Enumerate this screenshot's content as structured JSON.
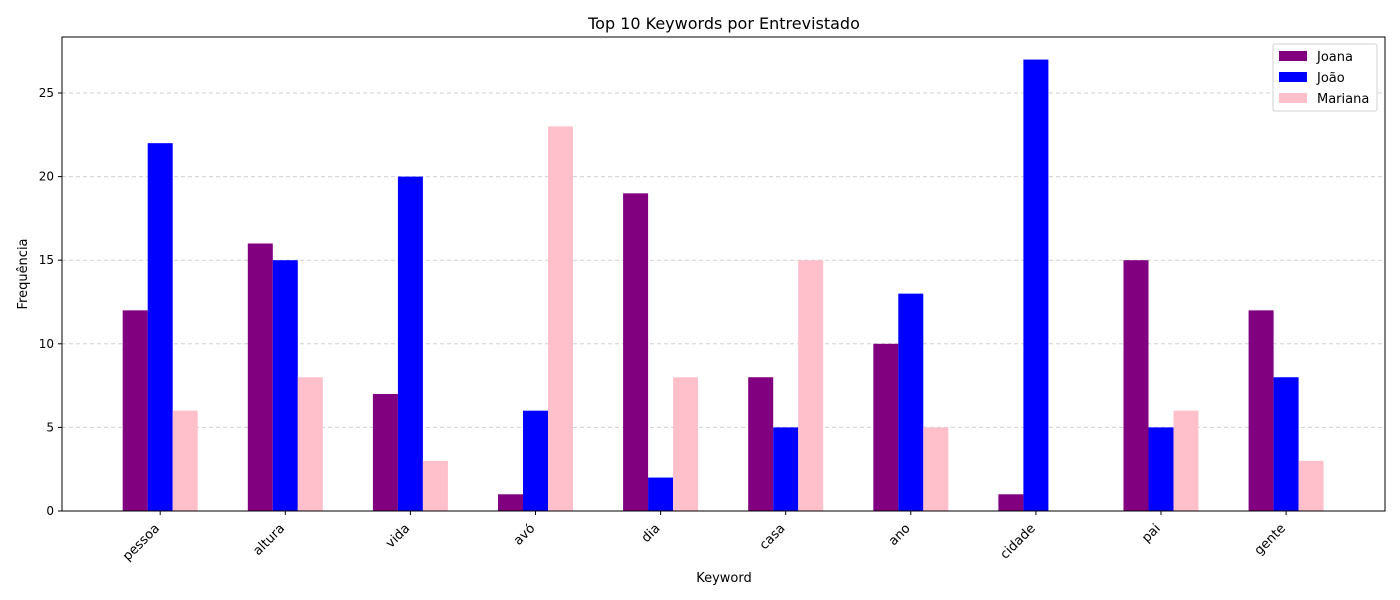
{
  "chart_data": {
    "type": "bar",
    "title": "Top 10 Keywords por Entrevistado",
    "xlabel": "Keyword",
    "ylabel": "Frequência",
    "categories": [
      "pessoa",
      "altura",
      "vida",
      "avó",
      "dia",
      "casa",
      "ano",
      "cidade",
      "pai",
      "gente"
    ],
    "series": [
      {
        "name": "Joana",
        "color": "#800080",
        "values": [
          12,
          16,
          7,
          1,
          19,
          8,
          10,
          1,
          15,
          12
        ]
      },
      {
        "name": "João",
        "color": "#0000ff",
        "values": [
          22,
          15,
          20,
          6,
          2,
          5,
          13,
          27,
          5,
          8
        ]
      },
      {
        "name": "Mariana",
        "color": "#ffc0cb",
        "values": [
          6,
          8,
          3,
          23,
          8,
          15,
          5,
          0,
          6,
          3
        ]
      }
    ],
    "ylim": [
      0,
      28.35
    ],
    "yticks": [
      0,
      5,
      10,
      15,
      20,
      25
    ],
    "grid": "y-dashed",
    "legend_position": "top-right"
  }
}
